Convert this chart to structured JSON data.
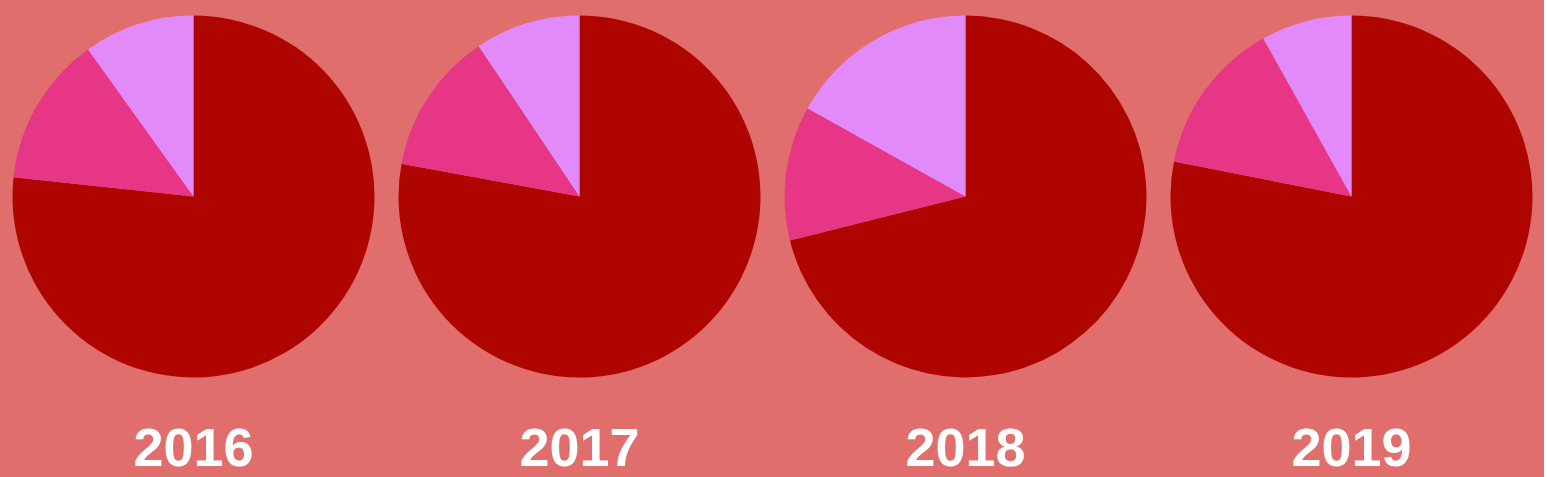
{
  "chart_data": [
    {
      "type": "pie",
      "title": "2016",
      "categories": [
        null,
        null,
        null
      ],
      "values": [
        76.7,
        13.4,
        9.9
      ],
      "colors": [
        "#ae0500",
        "#e83686",
        "#e38afb"
      ]
    },
    {
      "type": "pie",
      "title": "2017",
      "categories": [
        null,
        null,
        null
      ],
      "values": [
        77.9,
        12.7,
        9.4
      ],
      "colors": [
        "#ae0500",
        "#e83686",
        "#e38afb"
      ]
    },
    {
      "type": "pie",
      "title": "2018",
      "categories": [
        null,
        null,
        null
      ],
      "values": [
        71.1,
        12.0,
        16.9
      ],
      "colors": [
        "#ae0500",
        "#e83686",
        "#e38afb"
      ]
    },
    {
      "type": "pie",
      "title": "2019",
      "categories": [
        null,
        null,
        null
      ],
      "values": [
        78.1,
        13.8,
        8.1
      ],
      "colors": [
        "#ae0500",
        "#e83686",
        "#e38afb"
      ]
    }
  ]
}
